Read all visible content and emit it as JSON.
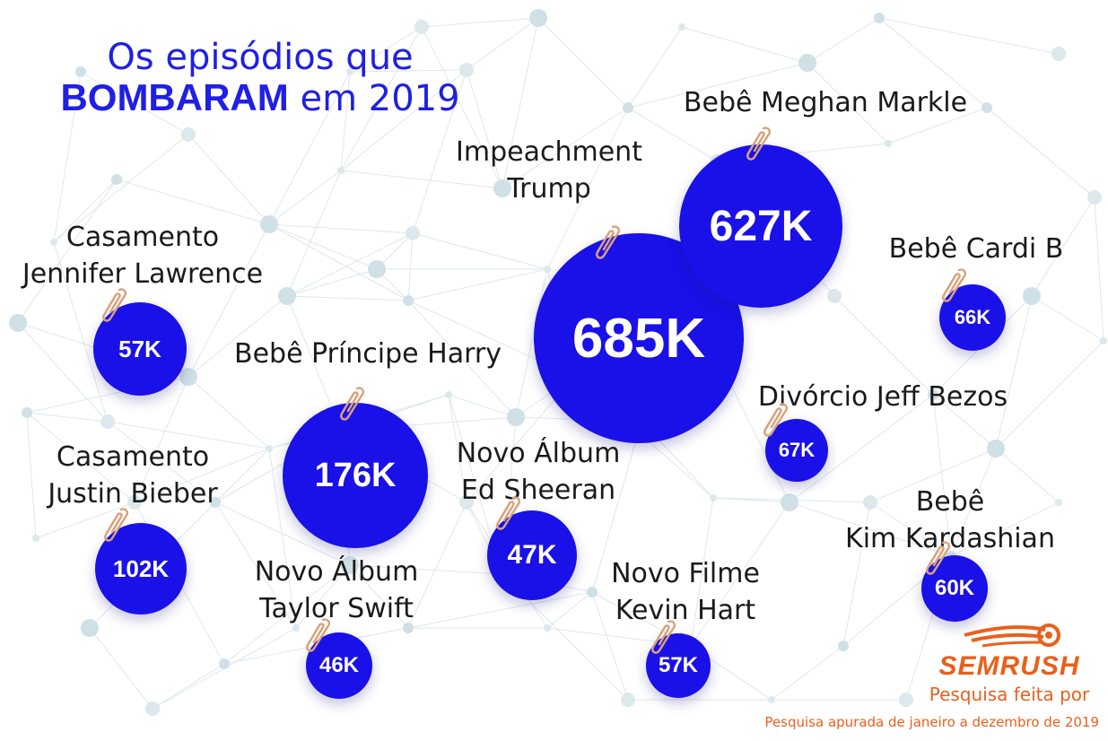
{
  "header": {
    "title_line1": "Os episódios que",
    "title_bold": "BOMBARAM",
    "title_rest": "em 2019"
  },
  "chart_data": {
    "type": "bubble",
    "items": [
      {
        "label": [
          "Impeachment",
          "Trump"
        ],
        "value_label": "685K",
        "value": 685000
      },
      {
        "label": [
          "Bebê Meghan Markle"
        ],
        "value_label": "627K",
        "value": 627000
      },
      {
        "label": [
          "Bebê Príncipe Harry"
        ],
        "value_label": "176K",
        "value": 176000
      },
      {
        "label": [
          "Casamento",
          "Justin Bieber"
        ],
        "value_label": "102K",
        "value": 102000
      },
      {
        "label": [
          "Divórcio Jeff Bezos"
        ],
        "value_label": "67K",
        "value": 67000
      },
      {
        "label": [
          "Bebê Cardi B"
        ],
        "value_label": "66K",
        "value": 66000
      },
      {
        "label": [
          "Bebê",
          "Kim Kardashian"
        ],
        "value_label": "60K",
        "value": 60000
      },
      {
        "label": [
          "Casamento",
          "Jennifer Lawrence"
        ],
        "value_label": "57K",
        "value": 57000
      },
      {
        "label": [
          "Novo Filme",
          "Kevin Hart"
        ],
        "value_label": "57K",
        "value": 57000
      },
      {
        "label": [
          "Novo Álbum",
          "Ed Sheeran"
        ],
        "value_label": "47K",
        "value": 47000
      },
      {
        "label": [
          "Novo Álbum",
          "Taylor Swift"
        ],
        "value_label": "46K",
        "value": 46000
      }
    ],
    "colors": {
      "bubble": "#1a10e8",
      "text": "#ffffff"
    }
  },
  "source": {
    "brand": "SEMRUSH",
    "caption": "Pesquisa feita por",
    "footnote": "Pesquisa apurada de janeiro a dezembro de 2019"
  },
  "colors": {
    "title": "#1f1fe6",
    "brand": "#e8601c"
  }
}
